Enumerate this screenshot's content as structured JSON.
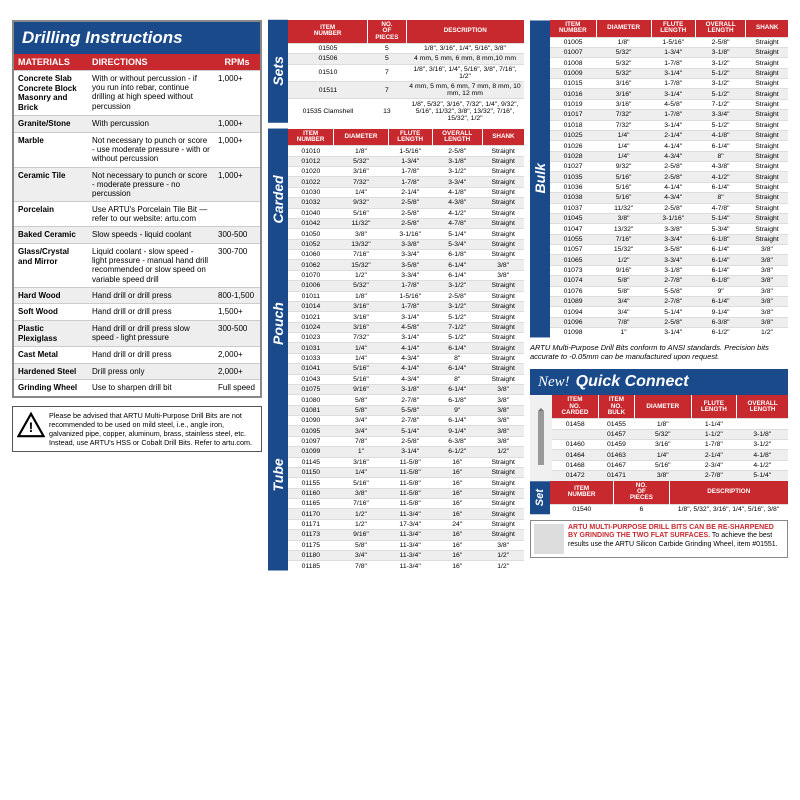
{
  "colors": {
    "blue": "#1a4a8a",
    "red": "#c8292f",
    "altRow": "#eeeeee"
  },
  "drilling": {
    "title": "Drilling Instructions",
    "headers": [
      "MATERIALS",
      "DIRECTIONS",
      "RPMs"
    ],
    "rows": [
      {
        "m": "Concrete Slab\nConcrete Block\nMasonry and Brick",
        "d": "With or without percussion - if you run into rebar, continue drilling at high speed without percussion",
        "r": "1,000+"
      },
      {
        "m": "Granite/Stone",
        "d": "With percussion",
        "r": "1,000+"
      },
      {
        "m": "Marble",
        "d": "Not necessary to punch or score - use moderate pressure - with or without percussion",
        "r": "1,000+"
      },
      {
        "m": "Ceramic Tile",
        "d": "Not necessary to punch or score - moderate pressure - no percussion",
        "r": "1,000+"
      },
      {
        "m": "Porcelain",
        "d": "Use ARTU's Porcelain Tile Bit — refer to our website: artu.com",
        "r": ""
      },
      {
        "m": "Baked Ceramic",
        "d": "Slow speeds - liquid coolant",
        "r": "300-500"
      },
      {
        "m": "Glass/Crystal and Mirror",
        "d": "Liquid coolant - slow speed - light pressure - manual hand drill recommended or slow speed on variable speed drill",
        "r": "300-700"
      },
      {
        "m": "Hard Wood",
        "d": "Hand drill or drill press",
        "r": "800-1,500"
      },
      {
        "m": "Soft Wood",
        "d": "Hand drill or drill press",
        "r": "1,500+"
      },
      {
        "m": "Plastic Plexiglass",
        "d": "Hand drill or drill press slow speed - light pressure",
        "r": "300-500"
      },
      {
        "m": "Cast Metal",
        "d": "Hand drill or drill press",
        "r": "2,000+"
      },
      {
        "m": "Hardened Steel",
        "d": "Drill press only",
        "r": "2,000+"
      },
      {
        "m": "Grinding Wheel",
        "d": "Use to sharpen drill bit",
        "r": "Full speed"
      }
    ]
  },
  "warning": "Please be advised that ARTU Multi-Purpose Drill Bits are not recommended to be used on mild steel, i.e., angle iron, galvanized pipe, copper, aluminum, brass, stainless steel, etc. Instead, use ARTU's HSS or Cobalt Drill Bits. Refer to artu.com.",
  "sets": {
    "label": "Sets",
    "headers": [
      "ITEM NUMBER",
      "NO. OF PIECES",
      "DESCRIPTION"
    ],
    "rows": [
      [
        "01505",
        "5",
        "1/8\", 3/16\", 1/4\", 5/16\", 3/8\""
      ],
      [
        "01506",
        "5",
        "4 mm, 5 mm, 6 mm, 8 mm,10 mm"
      ],
      [
        "01510",
        "7",
        "1/8\", 3/16\", 1/4\", 5/16\", 3/8\", 7/16\", 1/2\""
      ],
      [
        "01511",
        "7",
        "4 mm, 5 mm, 6 mm, 7 mm, 8 mm, 10 mm, 12 mm"
      ],
      [
        "01535 Clamshell",
        "13",
        "1/8\", 5/32\", 3/16\", 7/32\", 1/4\", 9/32\", 5/16\", 11/32\", 3/8\", 13/32\", 7/16\", 15/32\", 1/2\""
      ]
    ]
  },
  "col2": {
    "headers": [
      "ITEM NUMBER",
      "DIAMETER",
      "FLUTE LENGTH",
      "OVERALL LENGTH",
      "SHANK"
    ],
    "groups": [
      {
        "label": "Carded",
        "rows": [
          [
            "01010",
            "1/8\"",
            "1-5/16\"",
            "2-5/8\"",
            "Straight"
          ],
          [
            "01012",
            "5/32\"",
            "1-3/4\"",
            "3-1/8\"",
            "Straight"
          ],
          [
            "01020",
            "3/16\"",
            "1-7/8\"",
            "3-1/2\"",
            "Straight"
          ],
          [
            "01022",
            "7/32\"",
            "1-7/8\"",
            "3-3/4\"",
            "Straight"
          ],
          [
            "01030",
            "1/4\"",
            "2-1/4\"",
            "4-1/8\"",
            "Straight"
          ],
          [
            "01032",
            "9/32\"",
            "2-5/8\"",
            "4-3/8\"",
            "Straight"
          ],
          [
            "01040",
            "5/16\"",
            "2-5/8\"",
            "4-1/2\"",
            "Straight"
          ],
          [
            "01042",
            "11/32\"",
            "2-5/8\"",
            "4-7/8\"",
            "Straight"
          ],
          [
            "01050",
            "3/8\"",
            "3-1/16\"",
            "5-1/4\"",
            "Straight"
          ],
          [
            "01052",
            "13/32\"",
            "3-3/8\"",
            "5-3/4\"",
            "Straight"
          ],
          [
            "01060",
            "7/16\"",
            "3-3/4\"",
            "6-1/8\"",
            "Straight"
          ],
          [
            "01062",
            "15/32\"",
            "3-5/8\"",
            "6-1/4\"",
            "3/8\""
          ],
          [
            "01070",
            "1/2\"",
            "3-3/4\"",
            "6-1/4\"",
            "3/8\""
          ]
        ]
      },
      {
        "label": "Pouch",
        "rows": [
          [
            "01006",
            "5/32\"",
            "1-7/8\"",
            "3-1/2\"",
            "Straight"
          ],
          [
            "01011",
            "1/8\"",
            "1-5/16\"",
            "2-5/8\"",
            "Straight"
          ],
          [
            "01014",
            "3/16\"",
            "1-7/8\"",
            "3-1/2\"",
            "Straight"
          ],
          [
            "01021",
            "3/16\"",
            "3-1/4\"",
            "5-1/2\"",
            "Straight"
          ],
          [
            "01024",
            "3/16\"",
            "4-5/8\"",
            "7-1/2\"",
            "Straight"
          ],
          [
            "01023",
            "7/32\"",
            "3-1/4\"",
            "5-1/2\"",
            "Straight"
          ],
          [
            "01031",
            "1/4\"",
            "4-1/4\"",
            "6-1/4\"",
            "Straight"
          ],
          [
            "01033",
            "1/4\"",
            "4-3/4\"",
            "8\"",
            "Straight"
          ],
          [
            "01041",
            "5/16\"",
            "4-1/4\"",
            "6-1/4\"",
            "Straight"
          ],
          [
            "01043",
            "5/16\"",
            "4-3/4\"",
            "8\"",
            "Straight"
          ]
        ]
      },
      {
        "label": "Tube",
        "rows": [
          [
            "01075",
            "9/16\"",
            "3-1/8\"",
            "6-1/4\"",
            "3/8\""
          ],
          [
            "01080",
            "5/8\"",
            "2-7/8\"",
            "6-1/8\"",
            "3/8\""
          ],
          [
            "01081",
            "5/8\"",
            "5-5/8\"",
            "9\"",
            "3/8\""
          ],
          [
            "01090",
            "3/4\"",
            "2-7/8\"",
            "6-1/4\"",
            "3/8\""
          ],
          [
            "01095",
            "3/4\"",
            "5-1/4\"",
            "9-1/4\"",
            "3/8\""
          ],
          [
            "01097",
            "7/8\"",
            "2-5/8\"",
            "6-3/8\"",
            "3/8\""
          ],
          [
            "01099",
            "1\"",
            "3-1/4\"",
            "6-1/2\"",
            "1/2\""
          ],
          [
            "01145",
            "3/16\"",
            "11-5/8\"",
            "16\"",
            "Straight"
          ],
          [
            "01150",
            "1/4\"",
            "11-5/8\"",
            "16\"",
            "Straight"
          ],
          [
            "01155",
            "5/16\"",
            "11-5/8\"",
            "16\"",
            "Straight"
          ],
          [
            "01160",
            "3/8\"",
            "11-5/8\"",
            "16\"",
            "Straight"
          ],
          [
            "01165",
            "7/16\"",
            "11-5/8\"",
            "16\"",
            "Straight"
          ],
          [
            "01170",
            "1/2\"",
            "11-3/4\"",
            "16\"",
            "Straight"
          ],
          [
            "01171",
            "1/2\"",
            "17-3/4\"",
            "24\"",
            "Straight"
          ],
          [
            "01173",
            "9/16\"",
            "11-3/4\"",
            "16\"",
            "Straight"
          ],
          [
            "01175",
            "5/8\"",
            "11-3/4\"",
            "16\"",
            "3/8\""
          ],
          [
            "01180",
            "3/4\"",
            "11-3/4\"",
            "16\"",
            "1/2\""
          ],
          [
            "01185",
            "7/8\"",
            "11-3/4\"",
            "16\"",
            "1/2\""
          ]
        ]
      }
    ]
  },
  "bulk": {
    "label": "Bulk",
    "headers": [
      "ITEM NUMBER",
      "DIAMETER",
      "FLUTE LENGTH",
      "OVERALL LENGTH",
      "SHANK"
    ],
    "rows": [
      [
        "01005",
        "1/8\"",
        "1-5/16\"",
        "2-5/8\"",
        "Straight"
      ],
      [
        "01007",
        "5/32\"",
        "1-3/4\"",
        "3-1/8\"",
        "Straight"
      ],
      [
        "01008",
        "5/32\"",
        "1-7/8\"",
        "3-1/2\"",
        "Straight"
      ],
      [
        "01009",
        "5/32\"",
        "3-1/4\"",
        "5-1/2\"",
        "Straight"
      ],
      [
        "01015",
        "3/16\"",
        "1-7/8\"",
        "3-1/2\"",
        "Straight"
      ],
      [
        "01016",
        "3/16\"",
        "3-1/4\"",
        "5-1/2\"",
        "Straight"
      ],
      [
        "01019",
        "3/16\"",
        "4-5/8\"",
        "7-1/2\"",
        "Straight"
      ],
      [
        "01017",
        "7/32\"",
        "1-7/8\"",
        "3-3/4\"",
        "Straight"
      ],
      [
        "01018",
        "7/32\"",
        "3-1/4\"",
        "5-1/2\"",
        "Straight"
      ],
      [
        "01025",
        "1/4\"",
        "2-1/4\"",
        "4-1/8\"",
        "Straight"
      ],
      [
        "01026",
        "1/4\"",
        "4-1/4\"",
        "6-1/4\"",
        "Straight"
      ],
      [
        "01028",
        "1/4\"",
        "4-3/4\"",
        "8\"",
        "Straight"
      ],
      [
        "01027",
        "9/32\"",
        "2-5/8\"",
        "4-3/8\"",
        "Straight"
      ],
      [
        "01035",
        "5/16\"",
        "2-5/8\"",
        "4-1/2\"",
        "Straight"
      ],
      [
        "01036",
        "5/16\"",
        "4-1/4\"",
        "6-1/4\"",
        "Straight"
      ],
      [
        "01038",
        "5/16\"",
        "4-3/4\"",
        "8\"",
        "Straight"
      ],
      [
        "01037",
        "11/32\"",
        "2-5/8\"",
        "4-7/8\"",
        "Straight"
      ],
      [
        "01045",
        "3/8\"",
        "3-1/16\"",
        "5-1/4\"",
        "Straight"
      ],
      [
        "01047",
        "13/32\"",
        "3-3/8\"",
        "5-3/4\"",
        "Straight"
      ],
      [
        "01055",
        "7/16\"",
        "3-3/4\"",
        "6-1/8\"",
        "Straight"
      ],
      [
        "01057",
        "15/32\"",
        "3-5/8\"",
        "6-1/4\"",
        "3/8\""
      ],
      [
        "01065",
        "1/2\"",
        "3-3/4\"",
        "6-1/4\"",
        "3/8\""
      ],
      [
        "01073",
        "9/16\"",
        "3-1/8\"",
        "6-1/4\"",
        "3/8\""
      ],
      [
        "01074",
        "5/8\"",
        "2-7/8\"",
        "6-1/8\"",
        "3/8\""
      ],
      [
        "01076",
        "5/8\"",
        "5-5/8\"",
        "9\"",
        "3/8\""
      ],
      [
        "01089",
        "3/4\"",
        "2-7/8\"",
        "6-1/4\"",
        "3/8\""
      ],
      [
        "01094",
        "3/4\"",
        "5-1/4\"",
        "9-1/4\"",
        "3/8\""
      ],
      [
        "01096",
        "7/8\"",
        "2-5/8\"",
        "6-3/8\"",
        "3/8\""
      ],
      [
        "01098",
        "1\"",
        "3-1/4\"",
        "6-1/2\"",
        "1/2\""
      ]
    ]
  },
  "bulkNote": "ARTU Multi-Purpose Drill Bits conform to ANSI standards. Precision bits accurate to -0.05mm can be manufactured upon request.",
  "qc": {
    "title": "Quick Connect",
    "new": "New!",
    "headers": [
      "ITEM NO. CARDED",
      "ITEM NO. BULK",
      "DIAMETER",
      "FLUTE LENGTH",
      "OVERALL LENGTH"
    ],
    "rows": [
      [
        "01458",
        "01455",
        "1/8\"",
        "1-1/4\"",
        " "
      ],
      [
        "",
        "01457",
        "5/32\"",
        "1-1/2\"",
        "3-1/8\""
      ],
      [
        "01460",
        "01459",
        "3/16\"",
        "1-7/8\"",
        "3-1/2\""
      ],
      [
        "01464",
        "01463",
        "1/4\"",
        "2-1/4\"",
        "4-1/8\""
      ],
      [
        "01468",
        "01467",
        "5/16\"",
        "2-3/4\"",
        "4-1/2\""
      ],
      [
        "01472",
        "01471",
        "3/8\"",
        "2-7/8\"",
        "5-1/4\""
      ]
    ],
    "setLabel": "Set",
    "setHeaders": [
      "ITEM NUMBER",
      "NO. OF PIECES",
      "DESCRIPTION"
    ],
    "setRow": [
      "01540",
      "6",
      "1/8\", 5/32\", 3/16\", 1/4\", 5/16\", 3/8\""
    ]
  },
  "note2": {
    "highlight": "ARTU MULTI-PURPOSE DRILL BITS CAN BE RE-SHARPENED BY GRINDING THE TWO FLAT SURFACES.",
    "text": "To achieve the best results use the ARTU Silicon Carbide Grinding Wheel, item #01551."
  }
}
